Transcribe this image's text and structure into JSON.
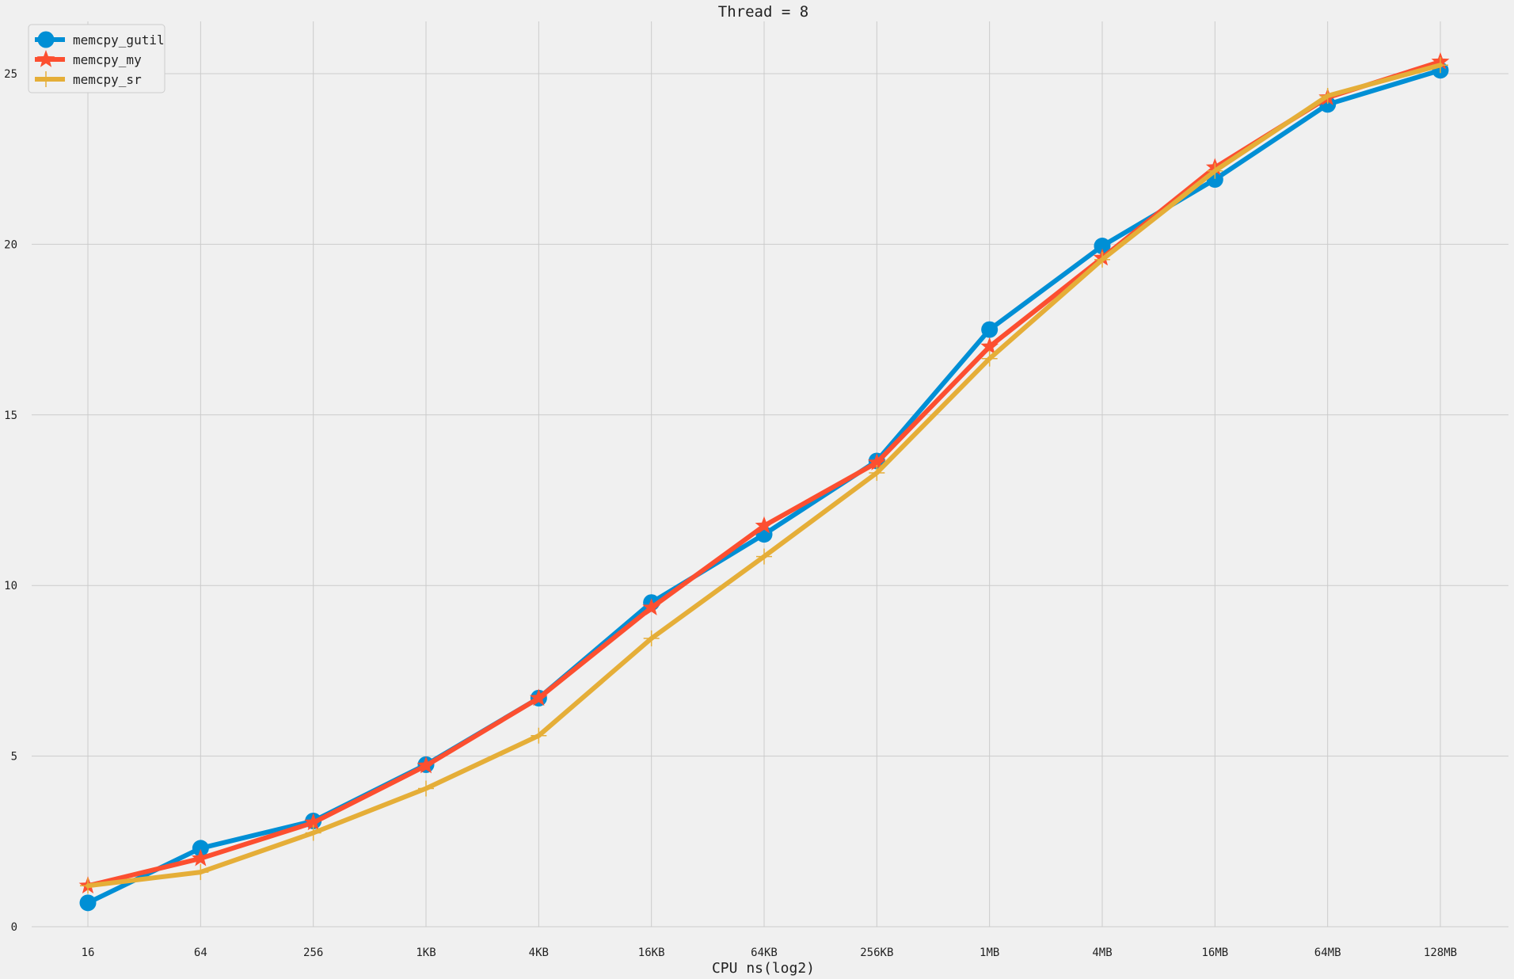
{
  "chart_data": {
    "type": "line",
    "title": "Thread = 8",
    "xlabel": "CPU ns(log2)",
    "ylabel": "",
    "categories": [
      "16",
      "64",
      "256",
      "1KB",
      "4KB",
      "16KB",
      "64KB",
      "256KB",
      "1MB",
      "4MB",
      "16MB",
      "64MB",
      "128MB"
    ],
    "ylim": [
      0,
      26.5
    ],
    "yticks": [
      "0",
      "5",
      "10",
      "15",
      "20",
      "25"
    ],
    "grid": true,
    "legend_position": "top-left",
    "series": [
      {
        "name": "memcpy_gutil",
        "color": "#008fd5",
        "marker": "circle",
        "values": [
          0.7,
          2.3,
          3.1,
          4.75,
          6.7,
          9.5,
          11.5,
          13.65,
          17.5,
          19.95,
          21.9,
          24.1,
          25.1
        ]
      },
      {
        "name": "memcpy_my",
        "color": "#fc4f30",
        "marker": "star",
        "values": [
          1.2,
          2.0,
          3.05,
          4.72,
          6.7,
          9.35,
          11.75,
          13.6,
          17.0,
          19.6,
          22.25,
          24.3,
          25.35
        ]
      },
      {
        "name": "memcpy_sr",
        "color": "#e5ae38",
        "marker": "plus",
        "values": [
          1.2,
          1.6,
          2.75,
          4.05,
          5.6,
          8.45,
          10.85,
          13.3,
          16.65,
          19.55,
          22.15,
          24.35,
          25.25
        ]
      }
    ]
  }
}
